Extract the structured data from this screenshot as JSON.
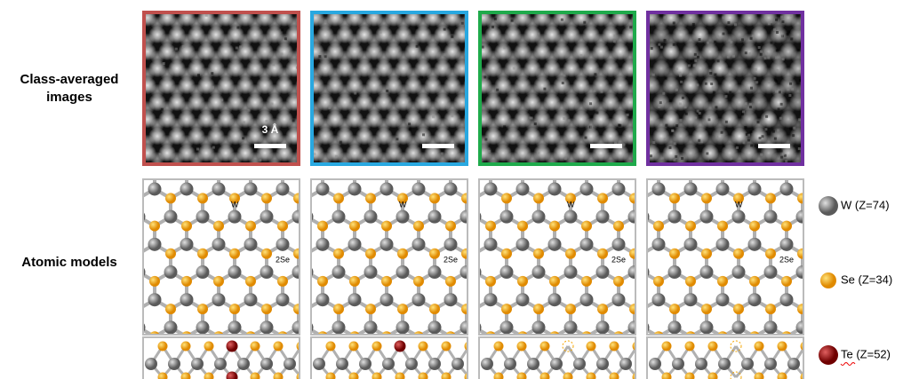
{
  "row_labels": [
    [
      "Class-averaged",
      "images"
    ],
    [
      "Atomic models"
    ]
  ],
  "images": [
    {
      "border": "#c0504d",
      "scale_label": "3 Å",
      "noise": 0.05
    },
    {
      "border": "#29a8e0",
      "noise": 0.05
    },
    {
      "border": "#1faa4b",
      "noise": 0.08
    },
    {
      "border": "#7030a0",
      "noise": 0.3
    }
  ],
  "models": [
    {
      "labels": [
        "W",
        "2Se"
      ],
      "center": "Te",
      "side": [
        "Te",
        "Te"
      ]
    },
    {
      "labels": [
        "W",
        "2Se"
      ],
      "center": "Te",
      "side": [
        "Te",
        "Se"
      ]
    },
    {
      "labels": [
        "W",
        "2Se"
      ],
      "center": "Se",
      "side": [
        "vacancy",
        "Se"
      ]
    },
    {
      "labels": [
        "W",
        "2Se"
      ],
      "center": "none",
      "side": [
        "vacancy",
        "vacancy"
      ]
    }
  ],
  "legend": [
    {
      "label": "W (Z=74)",
      "color": "#7f7f7f"
    },
    {
      "label": "Se (Z=34)",
      "color": "#f5a500"
    },
    {
      "label": "Te (Z=52)",
      "color": "#a01010"
    }
  ]
}
